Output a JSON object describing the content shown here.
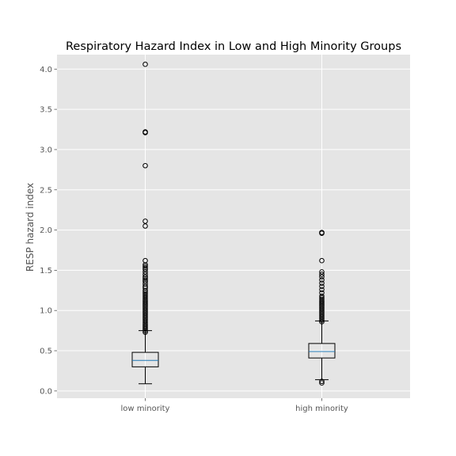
{
  "chart_data": {
    "type": "box",
    "title": "Respiratory Hazard Index in Low and High Minority Groups",
    "xlabel": "",
    "ylabel": "RESP hazard index",
    "ylim": [
      -0.09,
      4.18
    ],
    "yticks": [
      "0.0",
      "0.5",
      "1.0",
      "1.5",
      "2.0",
      "2.5",
      "3.0",
      "3.5",
      "4.0"
    ],
    "grid": true,
    "categories": [
      "low minority",
      "high minority"
    ],
    "boxes": [
      {
        "name": "low minority",
        "whisker_low": 0.09,
        "q1": 0.3,
        "median": 0.38,
        "q3": 0.48,
        "whisker_high": 0.75,
        "outliers": [
          0.73,
          0.75,
          0.77,
          0.79,
          0.81,
          0.83,
          0.85,
          0.87,
          0.89,
          0.91,
          0.93,
          0.95,
          0.97,
          0.99,
          1.01,
          1.03,
          1.05,
          1.07,
          1.09,
          1.11,
          1.13,
          1.15,
          1.17,
          1.19,
          1.21,
          1.23,
          1.25,
          1.28,
          1.3,
          1.33,
          1.36,
          1.38,
          1.4,
          1.42,
          1.45,
          1.48,
          1.51,
          1.53,
          1.55,
          1.57,
          1.62,
          2.05,
          2.11,
          2.8,
          3.21,
          3.22,
          4.06
        ]
      },
      {
        "name": "high minority",
        "whisker_low": 0.14,
        "q1": 0.41,
        "median": 0.49,
        "q3": 0.59,
        "whisker_high": 0.87,
        "outliers": [
          0.1,
          0.12,
          0.86,
          0.88,
          0.9,
          0.92,
          0.94,
          0.96,
          0.98,
          1.0,
          1.02,
          1.04,
          1.06,
          1.08,
          1.1,
          1.12,
          1.14,
          1.16,
          1.18,
          1.22,
          1.26,
          1.3,
          1.34,
          1.38,
          1.42,
          1.45,
          1.48,
          1.62,
          1.96,
          1.97
        ]
      }
    ],
    "colors": {
      "background": "#ffffff",
      "plot_background": "#e5e5e5",
      "grid": "#ffffff",
      "box": "#000000",
      "median": "#1f77b4",
      "tick_label": "#555555",
      "title": "#000000"
    }
  }
}
